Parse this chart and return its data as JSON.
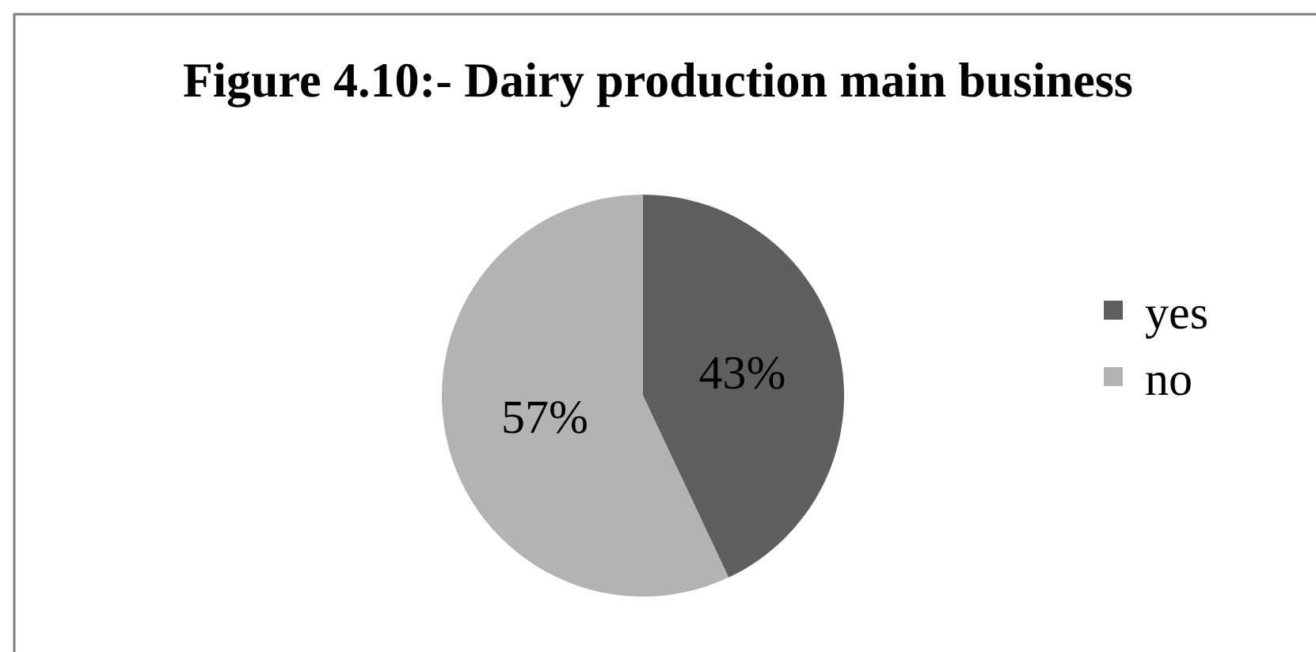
{
  "chart_data": {
    "type": "pie",
    "title": "Figure 4.10:- Dairy production main business",
    "categories": [
      "yes",
      "no"
    ],
    "values": [
      43,
      57
    ],
    "colors": [
      "#5f5f5f",
      "#b3b3b3"
    ],
    "value_labels": [
      "43%",
      "57%"
    ],
    "legend": "right"
  }
}
